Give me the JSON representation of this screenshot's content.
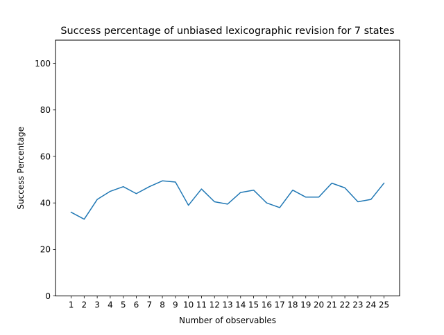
{
  "chart_data": {
    "type": "line",
    "title": "Success percentage of unbiased lexicographic revision for 7 states",
    "xlabel": "Number of observables",
    "ylabel": "Success Percentage",
    "x": [
      1,
      2,
      3,
      4,
      5,
      6,
      7,
      8,
      9,
      10,
      11,
      12,
      13,
      14,
      15,
      16,
      17,
      18,
      19,
      20,
      21,
      22,
      23,
      24,
      25
    ],
    "x_tick_labels": [
      "1",
      "2",
      "3",
      "4",
      "5",
      "6",
      "7",
      "8",
      "9",
      "10",
      "11",
      "12",
      "13",
      "14",
      "15",
      "16",
      "17",
      "18",
      "19",
      "20",
      "21",
      "22",
      "23",
      "24",
      "25"
    ],
    "series": [
      {
        "values": [
          36,
          33,
          41.5,
          45,
          47,
          44,
          47,
          49.5,
          49,
          39,
          46,
          40.5,
          39.5,
          44.5,
          45.5,
          40,
          38,
          45.5,
          42.5,
          42.5,
          48.5,
          46.5,
          40.5,
          41.5,
          48.5
        ],
        "color": "#1f77b4"
      }
    ],
    "y_ticks": [
      0,
      20,
      40,
      60,
      80,
      100
    ],
    "y_tick_labels": [
      "0",
      "20",
      "40",
      "60",
      "80",
      "100"
    ],
    "xlim": [
      -0.2,
      26.2
    ],
    "ylim": [
      0,
      110
    ],
    "grid": false,
    "legend": "none"
  }
}
